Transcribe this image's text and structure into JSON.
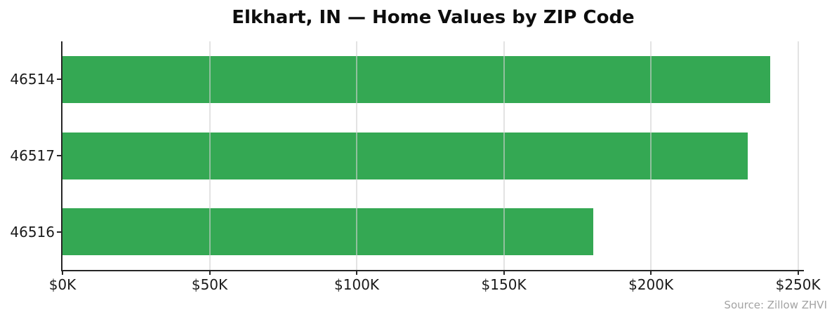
{
  "chart_data": {
    "type": "bar",
    "orientation": "horizontal",
    "title": "Elkhart, IN — Home Values by ZIP Code",
    "categories": [
      "46514",
      "46517",
      "46516"
    ],
    "values": [
      240500,
      232900,
      180400
    ],
    "unit": "USD",
    "xlabel": "",
    "ylabel": "",
    "x_ticks": [
      {
        "value": 0,
        "label": "$0K"
      },
      {
        "value": 50000,
        "label": "$50K"
      },
      {
        "value": 100000,
        "label": "$100K"
      },
      {
        "value": 150000,
        "label": "$150K"
      },
      {
        "value": 200000,
        "label": "$200K"
      },
      {
        "value": 250000,
        "label": "$250K"
      }
    ],
    "xlim": [
      0,
      252000
    ],
    "grid": {
      "vertical": true,
      "horizontal": false,
      "position": "above-bars"
    },
    "legend": null,
    "colors": {
      "bar": "#34a853",
      "gridline": "#e4e4e4",
      "axis": "#262626",
      "tick_label": "#1a1a1a",
      "title": "#0d0d0d",
      "source": "#a3a3a3",
      "background": "#ffffff"
    },
    "source_note": "Source: Zillow ZHVI"
  }
}
